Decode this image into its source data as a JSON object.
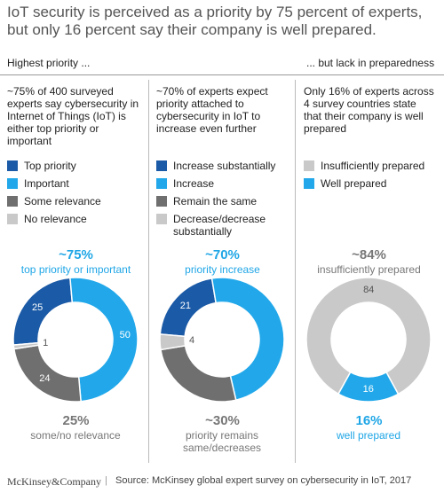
{
  "title": [
    "IoT security is perceived as a priority by 75 percent of experts,",
    "but only 16 percent say their company is well prepared."
  ],
  "section_headers": [
    "Highest priority ...",
    "... but lack in preparedness"
  ],
  "chart_data": [
    {
      "type": "donut",
      "description": "~75% of 400 surveyed experts say cybersecurity in Internet of Things (IoT) is either top priority or important",
      "categories": [
        "Top priority",
        "Important",
        "Some relevance",
        "No relevance"
      ],
      "values": [
        25,
        50,
        24,
        1
      ],
      "colors": [
        "#1b5aa6",
        "#22a8ea",
        "#6f6f6f",
        "#c9c9c9"
      ],
      "top_label": "~75%",
      "top_caption": "top priority or important",
      "bottom_label": "25%",
      "bottom_caption": "some/no relevance"
    },
    {
      "type": "donut",
      "description": "~70% of experts expect priority attached to cybersecurity in IoT to increase even further",
      "categories": [
        "Increase substantially",
        "Increase",
        "Remain the same",
        "Decrease/decrease substantially"
      ],
      "values": [
        21,
        49,
        26,
        4
      ],
      "value_labels": [
        "21",
        null,
        null,
        "4"
      ],
      "colors": [
        "#1b5aa6",
        "#22a8ea",
        "#6f6f6f",
        "#c9c9c9"
      ],
      "top_label": "~70%",
      "top_caption": "priority increase",
      "bottom_label": "~30%",
      "bottom_caption": "priority remains same/decreases"
    },
    {
      "type": "donut",
      "description": "Only 16% of experts across 4 survey countries state that their company is well prepared",
      "categories": [
        "Insufficiently prepared",
        "Well prepared"
      ],
      "values": [
        84,
        16
      ],
      "colors": [
        "#c9c9c9",
        "#22a8ea"
      ],
      "top_label": "~84%",
      "top_caption": "insufficiently prepared",
      "bottom_label": "16%",
      "bottom_caption": "well prepared"
    }
  ],
  "footer": {
    "brand": "McKinsey&Company",
    "source": "Source: McKinsey global expert survey on cybersecurity in IoT, 2017"
  }
}
